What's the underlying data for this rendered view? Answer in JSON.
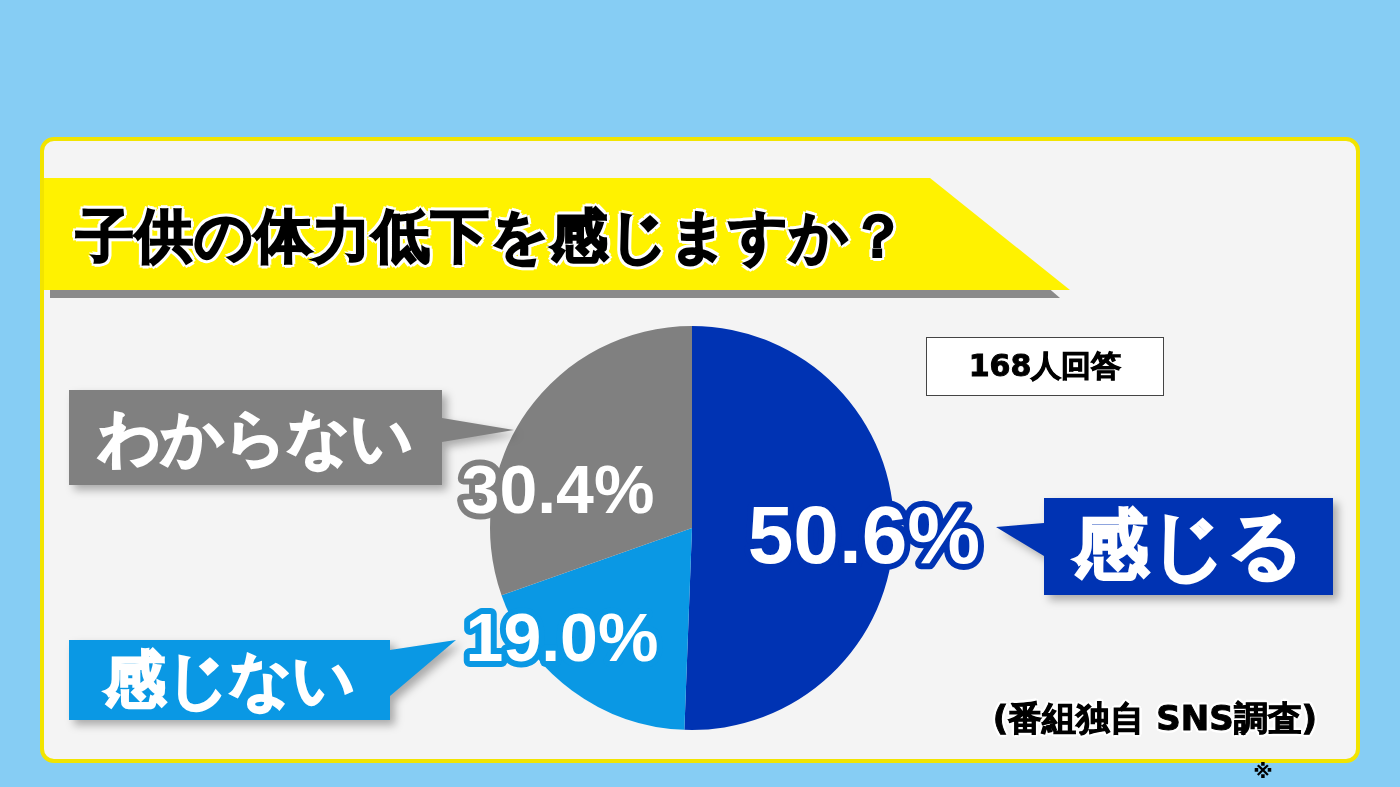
{
  "chart_data": {
    "type": "pie",
    "title": "子供の体力低下を感じますか？",
    "categories": [
      "感じる",
      "感じない",
      "わからない"
    ],
    "values": [
      50.6,
      19.0,
      30.4
    ],
    "colors": [
      "#0033b3",
      "#0a98e4",
      "#808080"
    ],
    "value_labels": [
      "50.6%",
      "19.0%",
      "30.4%"
    ],
    "annotations": [
      "168人回答",
      "(番組独自 SNS調査)",
      "※"
    ]
  }
}
